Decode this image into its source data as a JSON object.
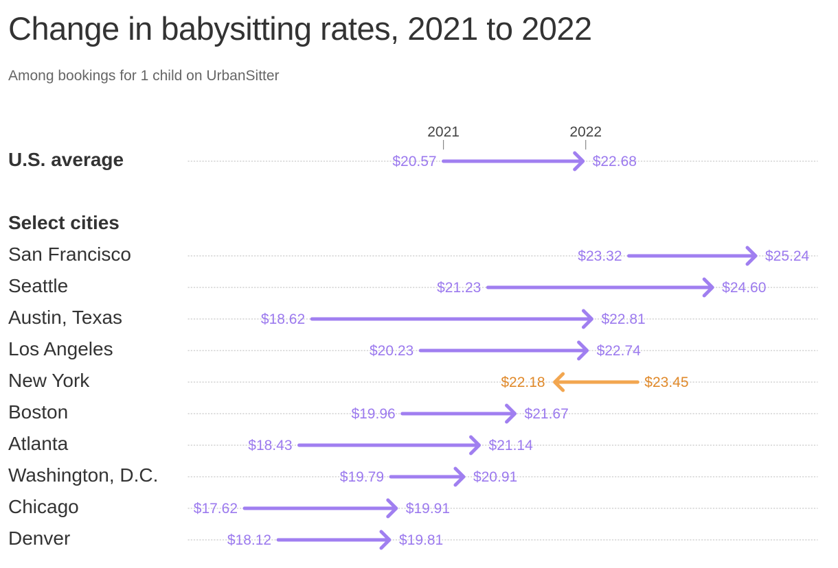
{
  "header": {
    "title": "Change in babysitting rates, 2021 to 2022",
    "subtitle": "Among bookings for 1 child on UrbanSitter",
    "section_label": "Select cities"
  },
  "colors": {
    "increase": "#a07ff0",
    "decrease": "#f2a650",
    "increase_text": "#9b79ee",
    "decrease_text": "#e0892a",
    "gridline": "#c8c8c8",
    "text": "#333333"
  },
  "chart_data": {
    "type": "arrow-dot-plot",
    "title": "Change in babysitting rates, 2021 to 2022",
    "subtitle": "Among bookings for 1 child on UrbanSitter",
    "series_labels": [
      "2021",
      "2022"
    ],
    "unit": "USD per hour",
    "xlim": [
      17.62,
      25.24
    ],
    "grid": true,
    "average": {
      "label": "U.S. average",
      "y2021": 20.57,
      "y2022": 22.68,
      "label2021": "$20.57",
      "label2022": "$22.68"
    },
    "rows": [
      {
        "label": "San Francisco",
        "y2021": 23.32,
        "y2022": 25.24,
        "label2021": "$23.32",
        "label2022": "$25.24"
      },
      {
        "label": "Seattle",
        "y2021": 21.23,
        "y2022": 24.6,
        "label2021": "$21.23",
        "label2022": "$24.60"
      },
      {
        "label": "Austin, Texas",
        "y2021": 18.62,
        "y2022": 22.81,
        "label2021": "$18.62",
        "label2022": "$22.81"
      },
      {
        "label": "Los Angeles",
        "y2021": 20.23,
        "y2022": 22.74,
        "label2021": "$20.23",
        "label2022": "$22.74"
      },
      {
        "label": "New York",
        "y2021": 23.45,
        "y2022": 22.18,
        "label2021": "$23.45",
        "label2022": "$22.18"
      },
      {
        "label": "Boston",
        "y2021": 19.96,
        "y2022": 21.67,
        "label2021": "$19.96",
        "label2022": "$21.67"
      },
      {
        "label": "Atlanta",
        "y2021": 18.43,
        "y2022": 21.14,
        "label2021": "$18.43",
        "label2022": "$21.14"
      },
      {
        "label": "Washington, D.C.",
        "y2021": 19.79,
        "y2022": 20.91,
        "label2021": "$19.79",
        "label2022": "$20.91"
      },
      {
        "label": "Chicago",
        "y2021": 17.62,
        "y2022": 19.91,
        "label2021": "$17.62",
        "label2022": "$19.91"
      },
      {
        "label": "Denver",
        "y2021": 18.12,
        "y2022": 19.81,
        "label2021": "$18.12",
        "label2022": "$19.81"
      }
    ]
  }
}
